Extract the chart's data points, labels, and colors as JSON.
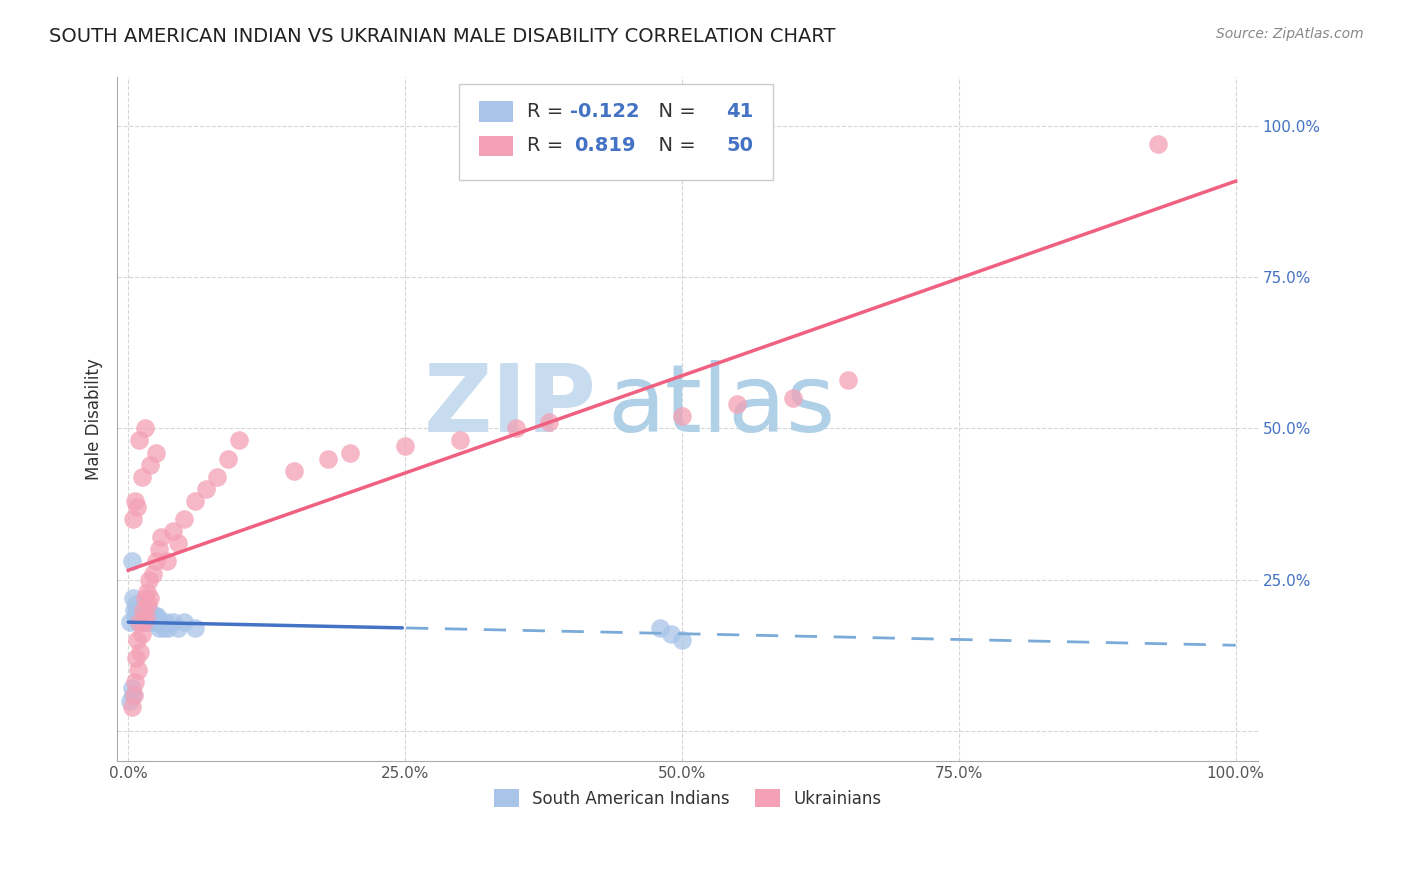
{
  "title": "SOUTH AMERICAN INDIAN VS UKRAINIAN MALE DISABILITY CORRELATION CHART",
  "source": "Source: ZipAtlas.com",
  "ylabel": "Male Disability",
  "legend_label1": "South American Indians",
  "legend_label2": "Ukrainians",
  "R1": -0.122,
  "N1": 41,
  "R2": 0.819,
  "N2": 50,
  "color_blue": "#A8C4E8",
  "color_pink": "#F4A0B5",
  "line_blue_solid": "#4472C4",
  "line_blue_dash": "#7AAAD8",
  "line_pink": "#F06080",
  "watermark_zip": "ZIP",
  "watermark_atlas": "atlas",
  "watermark_color_zip": "#C8DCF0",
  "watermark_color_atlas": "#B0D0E8",
  "blue_points": [
    [
      0.002,
      0.18
    ],
    [
      0.004,
      0.22
    ],
    [
      0.005,
      0.2
    ],
    [
      0.006,
      0.19
    ],
    [
      0.007,
      0.21
    ],
    [
      0.008,
      0.2
    ],
    [
      0.009,
      0.18
    ],
    [
      0.01,
      0.2
    ],
    [
      0.011,
      0.19
    ],
    [
      0.012,
      0.18
    ],
    [
      0.013,
      0.2
    ],
    [
      0.014,
      0.19
    ],
    [
      0.015,
      0.18
    ],
    [
      0.016,
      0.2
    ],
    [
      0.017,
      0.19
    ],
    [
      0.018,
      0.18
    ],
    [
      0.019,
      0.2
    ],
    [
      0.02,
      0.19
    ],
    [
      0.021,
      0.18
    ],
    [
      0.022,
      0.19
    ],
    [
      0.023,
      0.18
    ],
    [
      0.024,
      0.19
    ],
    [
      0.025,
      0.18
    ],
    [
      0.026,
      0.19
    ],
    [
      0.027,
      0.18
    ],
    [
      0.028,
      0.17
    ],
    [
      0.03,
      0.18
    ],
    [
      0.032,
      0.17
    ],
    [
      0.034,
      0.18
    ],
    [
      0.036,
      0.17
    ],
    [
      0.04,
      0.18
    ],
    [
      0.045,
      0.17
    ],
    [
      0.05,
      0.18
    ],
    [
      0.06,
      0.17
    ],
    [
      0.003,
      0.28
    ],
    [
      0.48,
      0.17
    ],
    [
      0.49,
      0.16
    ],
    [
      0.5,
      0.15
    ],
    [
      0.002,
      0.05
    ],
    [
      0.003,
      0.07
    ],
    [
      0.004,
      0.06
    ]
  ],
  "pink_points": [
    [
      0.003,
      0.04
    ],
    [
      0.005,
      0.06
    ],
    [
      0.006,
      0.08
    ],
    [
      0.007,
      0.12
    ],
    [
      0.008,
      0.15
    ],
    [
      0.009,
      0.1
    ],
    [
      0.01,
      0.18
    ],
    [
      0.011,
      0.13
    ],
    [
      0.012,
      0.16
    ],
    [
      0.013,
      0.2
    ],
    [
      0.014,
      0.18
    ],
    [
      0.015,
      0.22
    ],
    [
      0.016,
      0.19
    ],
    [
      0.017,
      0.23
    ],
    [
      0.018,
      0.21
    ],
    [
      0.019,
      0.25
    ],
    [
      0.02,
      0.22
    ],
    [
      0.022,
      0.26
    ],
    [
      0.025,
      0.28
    ],
    [
      0.028,
      0.3
    ],
    [
      0.03,
      0.32
    ],
    [
      0.035,
      0.28
    ],
    [
      0.04,
      0.33
    ],
    [
      0.045,
      0.31
    ],
    [
      0.05,
      0.35
    ],
    [
      0.06,
      0.38
    ],
    [
      0.07,
      0.4
    ],
    [
      0.08,
      0.42
    ],
    [
      0.09,
      0.45
    ],
    [
      0.1,
      0.48
    ],
    [
      0.008,
      0.37
    ],
    [
      0.01,
      0.48
    ],
    [
      0.012,
      0.42
    ],
    [
      0.015,
      0.5
    ],
    [
      0.02,
      0.44
    ],
    [
      0.025,
      0.46
    ],
    [
      0.004,
      0.35
    ],
    [
      0.006,
      0.38
    ],
    [
      0.6,
      0.55
    ],
    [
      0.65,
      0.58
    ],
    [
      0.5,
      0.52
    ],
    [
      0.55,
      0.54
    ],
    [
      0.3,
      0.48
    ],
    [
      0.35,
      0.5
    ],
    [
      0.15,
      0.43
    ],
    [
      0.18,
      0.45
    ],
    [
      0.2,
      0.46
    ],
    [
      0.25,
      0.47
    ],
    [
      0.93,
      0.97
    ],
    [
      0.38,
      0.51
    ]
  ]
}
